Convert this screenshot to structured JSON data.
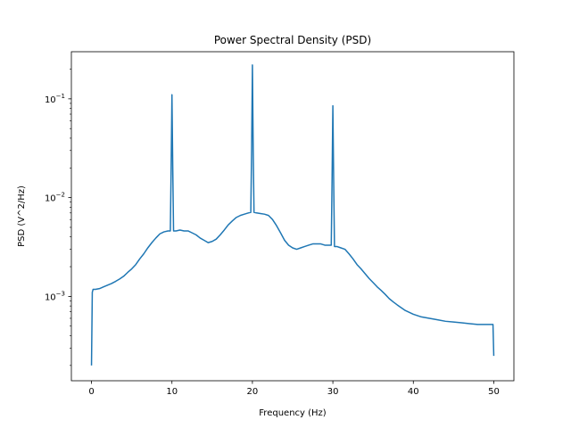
{
  "chart_data": {
    "type": "line",
    "title": "Power Spectral Density (PSD)",
    "xlabel": "Frequency (Hz)",
    "ylabel": "PSD (V^2/Hz)",
    "xlim": [
      -2.5,
      52.5
    ],
    "ylim": [
      0.00014,
      0.3
    ],
    "yscale": "log",
    "grid": false,
    "x_ticks": [
      {
        "value": 0,
        "label": "0"
      },
      {
        "value": 10,
        "label": "10"
      },
      {
        "value": 20,
        "label": "20"
      },
      {
        "value": 30,
        "label": "30"
      },
      {
        "value": 40,
        "label": "40"
      },
      {
        "value": 50,
        "label": "50"
      }
    ],
    "y_ticks": [
      {
        "value": 0.001,
        "base": "10",
        "exp": "−3"
      },
      {
        "value": 0.01,
        "base": "10",
        "exp": "−2"
      },
      {
        "value": 0.1,
        "base": "10",
        "exp": "−1"
      }
    ],
    "series": [
      {
        "color": "#1f77b4",
        "x": [
          0,
          0.1,
          0.2,
          0.5,
          1,
          1.5,
          2,
          2.5,
          3,
          3.5,
          4,
          4.5,
          5,
          5.5,
          6,
          6.5,
          7,
          7.5,
          8,
          8.5,
          9,
          9.5,
          9.8,
          9.9,
          10.0,
          10.1,
          10.2,
          10.5,
          11,
          11.5,
          12,
          12.5,
          13,
          13.5,
          14,
          14.5,
          15,
          15.5,
          16,
          16.5,
          17,
          17.5,
          18,
          18.5,
          19,
          19.5,
          19.8,
          19.9,
          20.0,
          20.1,
          20.2,
          20.5,
          21,
          21.5,
          22,
          22.5,
          23,
          23.5,
          24,
          24.5,
          25,
          25.5,
          26,
          26.5,
          27,
          27.5,
          28,
          28.5,
          29,
          29.5,
          29.8,
          29.9,
          30.0,
          30.1,
          30.2,
          30.5,
          31,
          31.5,
          32,
          32.5,
          33,
          33.5,
          34,
          34.5,
          35,
          35.5,
          36,
          36.5,
          37,
          37.5,
          38,
          39,
          40,
          41,
          42,
          43,
          44,
          45,
          46,
          47,
          48,
          49,
          49.8,
          49.9,
          50
        ],
        "y": [
          0.0002,
          0.0011,
          0.00118,
          0.00118,
          0.0012,
          0.00125,
          0.0013,
          0.00135,
          0.00142,
          0.0015,
          0.0016,
          0.00175,
          0.0019,
          0.0021,
          0.0024,
          0.0027,
          0.0031,
          0.0035,
          0.0039,
          0.0043,
          0.0045,
          0.0046,
          0.0046,
          0.02,
          0.11,
          0.02,
          0.0046,
          0.0046,
          0.0047,
          0.0046,
          0.0046,
          0.0044,
          0.0042,
          0.0039,
          0.0037,
          0.0035,
          0.0036,
          0.0038,
          0.0042,
          0.0047,
          0.0053,
          0.0058,
          0.0063,
          0.0066,
          0.0068,
          0.007,
          0.0071,
          0.03,
          0.22,
          0.03,
          0.0071,
          0.007,
          0.0069,
          0.0068,
          0.0066,
          0.006,
          0.0052,
          0.0044,
          0.0037,
          0.0033,
          0.0031,
          0.003,
          0.0031,
          0.0032,
          0.0033,
          0.0034,
          0.0034,
          0.0034,
          0.0033,
          0.0033,
          0.0033,
          0.015,
          0.085,
          0.015,
          0.0032,
          0.0032,
          0.0031,
          0.003,
          0.0027,
          0.0024,
          0.0021,
          0.0019,
          0.0017,
          0.00152,
          0.00138,
          0.00125,
          0.00115,
          0.00105,
          0.00095,
          0.00088,
          0.00082,
          0.00072,
          0.00066,
          0.00062,
          0.0006,
          0.00058,
          0.00056,
          0.00055,
          0.00054,
          0.00053,
          0.00052,
          0.00052,
          0.00052,
          0.00052,
          0.00025
        ]
      }
    ]
  }
}
